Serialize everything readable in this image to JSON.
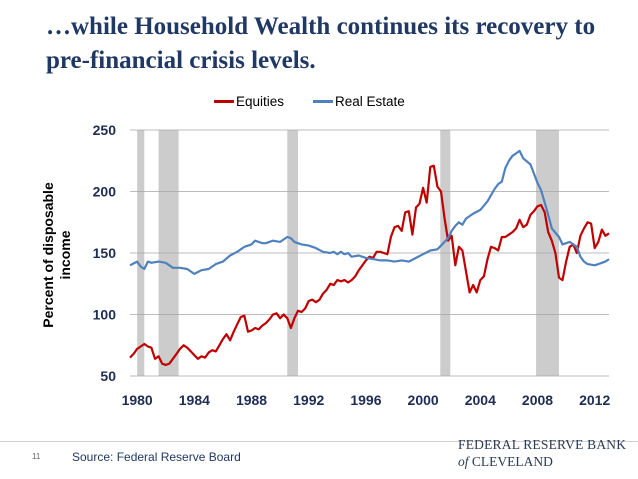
{
  "title": "…while Household Wealth continues its recovery to pre-financial crisis levels.",
  "page_number": "11",
  "source": "Source: Federal Reserve Board",
  "logo": {
    "line1": "FEDERAL RESERVE BANK",
    "of": "of",
    "line2": "CLEVELAND"
  },
  "colors": {
    "equities": "#c00000",
    "real_estate": "#4f81bd",
    "recession": "#cccccc",
    "grid": "#a6a6a6",
    "title": "#1f3864"
  },
  "chart_data": {
    "type": "line",
    "title": "",
    "ylabel": "Percent of disposable\nincome",
    "xlabel": "",
    "xlim": [
      1979.5,
      2013.0
    ],
    "ylim": [
      50,
      250
    ],
    "yticks": [
      50,
      100,
      150,
      200,
      250
    ],
    "xticks": [
      1980,
      1984,
      1988,
      1992,
      1996,
      2000,
      2004,
      2008,
      2012
    ],
    "grid": true,
    "legend_position": "top-center",
    "recessions": [
      [
        1980.0,
        1980.5
      ],
      [
        1981.5,
        1982.9
      ],
      [
        1990.5,
        1991.25
      ],
      [
        2001.2,
        2001.9
      ],
      [
        2007.9,
        2009.5
      ]
    ],
    "series": [
      {
        "name": "Equities",
        "color": "#c00000",
        "points": [
          [
            1979.5,
            65
          ],
          [
            1979.75,
            68
          ],
          [
            1980.0,
            72
          ],
          [
            1980.25,
            74
          ],
          [
            1980.5,
            76
          ],
          [
            1980.75,
            74
          ],
          [
            1981.0,
            73
          ],
          [
            1981.25,
            64
          ],
          [
            1981.5,
            66
          ],
          [
            1981.75,
            60
          ],
          [
            1982.0,
            59
          ],
          [
            1982.25,
            60
          ],
          [
            1982.5,
            64
          ],
          [
            1982.75,
            68
          ],
          [
            1983.0,
            72
          ],
          [
            1983.25,
            75
          ],
          [
            1983.5,
            73
          ],
          [
            1983.75,
            70
          ],
          [
            1984.0,
            67
          ],
          [
            1984.25,
            64
          ],
          [
            1984.5,
            66
          ],
          [
            1984.75,
            65
          ],
          [
            1985.0,
            69
          ],
          [
            1985.25,
            71
          ],
          [
            1985.5,
            70
          ],
          [
            1985.75,
            75
          ],
          [
            1986.0,
            80
          ],
          [
            1986.25,
            84
          ],
          [
            1986.5,
            79
          ],
          [
            1986.75,
            86
          ],
          [
            1987.0,
            92
          ],
          [
            1987.25,
            98
          ],
          [
            1987.5,
            99
          ],
          [
            1987.75,
            86
          ],
          [
            1988.0,
            87
          ],
          [
            1988.25,
            89
          ],
          [
            1988.5,
            88
          ],
          [
            1988.75,
            91
          ],
          [
            1989.0,
            93
          ],
          [
            1989.25,
            96
          ],
          [
            1989.5,
            100
          ],
          [
            1989.75,
            101
          ],
          [
            1990.0,
            97
          ],
          [
            1990.25,
            100
          ],
          [
            1990.5,
            97
          ],
          [
            1990.75,
            89
          ],
          [
            1991.0,
            97
          ],
          [
            1991.25,
            103
          ],
          [
            1991.5,
            102
          ],
          [
            1991.75,
            105
          ],
          [
            1992.0,
            111
          ],
          [
            1992.25,
            112
          ],
          [
            1992.5,
            110
          ],
          [
            1992.75,
            112
          ],
          [
            1993.0,
            117
          ],
          [
            1993.25,
            120
          ],
          [
            1993.5,
            125
          ],
          [
            1993.75,
            124
          ],
          [
            1994.0,
            128
          ],
          [
            1994.25,
            127
          ],
          [
            1994.5,
            128
          ],
          [
            1994.75,
            126
          ],
          [
            1995.0,
            128
          ],
          [
            1995.25,
            131
          ],
          [
            1995.5,
            136
          ],
          [
            1995.75,
            140
          ],
          [
            1996.0,
            144
          ],
          [
            1996.25,
            147
          ],
          [
            1996.5,
            146
          ],
          [
            1996.75,
            151
          ],
          [
            1997.0,
            151
          ],
          [
            1997.25,
            150
          ],
          [
            1997.5,
            149
          ],
          [
            1997.75,
            163
          ],
          [
            1998.0,
            171
          ],
          [
            1998.25,
            172
          ],
          [
            1998.5,
            168
          ],
          [
            1998.75,
            183
          ],
          [
            1999.0,
            184
          ],
          [
            1999.25,
            165
          ],
          [
            1999.5,
            187
          ],
          [
            1999.75,
            190
          ],
          [
            2000.0,
            203
          ],
          [
            2000.25,
            191
          ],
          [
            2000.5,
            220
          ],
          [
            2000.75,
            221
          ],
          [
            2001.0,
            204
          ],
          [
            2001.25,
            200
          ],
          [
            2001.5,
            178
          ],
          [
            2001.75,
            160
          ],
          [
            2002.0,
            164
          ],
          [
            2002.25,
            140
          ],
          [
            2002.5,
            155
          ],
          [
            2002.75,
            152
          ],
          [
            2003.0,
            135
          ],
          [
            2003.25,
            118
          ],
          [
            2003.5,
            124
          ],
          [
            2003.75,
            118
          ],
          [
            2004.0,
            128
          ],
          [
            2004.25,
            131
          ],
          [
            2004.5,
            145
          ],
          [
            2004.75,
            155
          ],
          [
            2005.0,
            154
          ],
          [
            2005.25,
            152
          ],
          [
            2005.5,
            163
          ],
          [
            2005.75,
            163
          ],
          [
            2006.0,
            165
          ],
          [
            2006.25,
            167
          ],
          [
            2006.5,
            170
          ],
          [
            2006.75,
            177
          ],
          [
            2007.0,
            171
          ],
          [
            2007.25,
            173
          ],
          [
            2007.5,
            181
          ],
          [
            2007.75,
            184
          ],
          [
            2008.0,
            188
          ],
          [
            2008.25,
            189
          ],
          [
            2008.5,
            183
          ],
          [
            2008.75,
            167
          ],
          [
            2009.0,
            160
          ],
          [
            2009.25,
            150
          ],
          [
            2009.5,
            130
          ],
          [
            2009.75,
            128
          ],
          [
            2010.0,
            143
          ],
          [
            2010.25,
            155
          ],
          [
            2010.5,
            157
          ],
          [
            2010.75,
            150
          ],
          [
            2011.0,
            164
          ],
          [
            2011.25,
            170
          ],
          [
            2011.5,
            175
          ],
          [
            2011.75,
            174
          ],
          [
            2012.0,
            154
          ],
          [
            2012.25,
            159
          ],
          [
            2012.5,
            169
          ],
          [
            2012.75,
            164
          ],
          [
            2013.0,
            166
          ]
        ]
      },
      {
        "name": "Real Estate",
        "color": "#4f81bd",
        "points": [
          [
            1979.5,
            140
          ],
          [
            1980.0,
            143
          ],
          [
            1980.25,
            139
          ],
          [
            1980.5,
            137
          ],
          [
            1980.75,
            143
          ],
          [
            1981.0,
            142
          ],
          [
            1981.5,
            143
          ],
          [
            1982.0,
            142
          ],
          [
            1982.5,
            138
          ],
          [
            1983.0,
            138
          ],
          [
            1983.5,
            137
          ],
          [
            1984.0,
            133
          ],
          [
            1984.5,
            136
          ],
          [
            1985.0,
            137
          ],
          [
            1985.5,
            141
          ],
          [
            1986.0,
            143
          ],
          [
            1986.5,
            148
          ],
          [
            1987.0,
            151
          ],
          [
            1987.5,
            155
          ],
          [
            1988.0,
            157
          ],
          [
            1988.25,
            160
          ],
          [
            1988.5,
            159
          ],
          [
            1988.75,
            158
          ],
          [
            1989.0,
            158
          ],
          [
            1989.5,
            160
          ],
          [
            1990.0,
            159
          ],
          [
            1990.5,
            163
          ],
          [
            1990.75,
            162
          ],
          [
            1991.0,
            159
          ],
          [
            1991.5,
            157
          ],
          [
            1992.0,
            156
          ],
          [
            1992.5,
            154
          ],
          [
            1993.0,
            151
          ],
          [
            1993.5,
            150
          ],
          [
            1993.75,
            151
          ],
          [
            1994.0,
            149
          ],
          [
            1994.25,
            151
          ],
          [
            1994.5,
            149
          ],
          [
            1994.75,
            150
          ],
          [
            1995.0,
            147
          ],
          [
            1995.5,
            148
          ],
          [
            1996.0,
            146
          ],
          [
            1996.5,
            145
          ],
          [
            1997.0,
            144
          ],
          [
            1997.5,
            144
          ],
          [
            1998.0,
            143
          ],
          [
            1998.5,
            144
          ],
          [
            1999.0,
            143
          ],
          [
            1999.5,
            146
          ],
          [
            2000.0,
            149
          ],
          [
            2000.5,
            152
          ],
          [
            2001.0,
            153
          ],
          [
            2001.5,
            159
          ],
          [
            2001.75,
            162
          ],
          [
            2002.0,
            168
          ],
          [
            2002.25,
            172
          ],
          [
            2002.5,
            175
          ],
          [
            2002.75,
            173
          ],
          [
            2003.0,
            178
          ],
          [
            2003.5,
            182
          ],
          [
            2004.0,
            185
          ],
          [
            2004.5,
            192
          ],
          [
            2005.0,
            202
          ],
          [
            2005.25,
            206
          ],
          [
            2005.5,
            208
          ],
          [
            2005.75,
            219
          ],
          [
            2006.0,
            225
          ],
          [
            2006.25,
            229
          ],
          [
            2006.5,
            231
          ],
          [
            2006.75,
            233
          ],
          [
            2007.0,
            227
          ],
          [
            2007.5,
            222
          ],
          [
            2008.0,
            207
          ],
          [
            2008.25,
            201
          ],
          [
            2008.5,
            191
          ],
          [
            2008.75,
            181
          ],
          [
            2009.0,
            170
          ],
          [
            2009.5,
            163
          ],
          [
            2009.75,
            157
          ],
          [
            2010.0,
            158
          ],
          [
            2010.25,
            159
          ],
          [
            2010.5,
            157
          ],
          [
            2010.75,
            155
          ],
          [
            2011.0,
            147
          ],
          [
            2011.25,
            143
          ],
          [
            2011.5,
            141
          ],
          [
            2012.0,
            140
          ],
          [
            2012.25,
            141
          ],
          [
            2012.5,
            142
          ],
          [
            2012.75,
            143
          ],
          [
            2013.0,
            145
          ]
        ]
      }
    ]
  }
}
